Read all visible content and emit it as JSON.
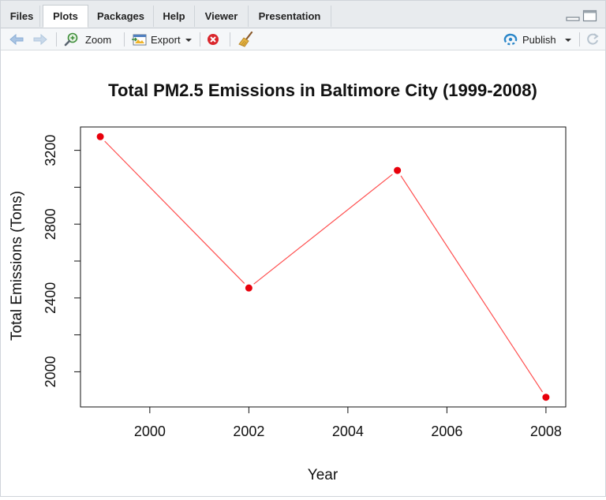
{
  "tabs": [
    {
      "label": "Files",
      "active": false
    },
    {
      "label": "Plots",
      "active": true
    },
    {
      "label": "Packages",
      "active": false
    },
    {
      "label": "Help",
      "active": false
    },
    {
      "label": "Viewer",
      "active": false
    },
    {
      "label": "Presentation",
      "active": false
    }
  ],
  "toolbar": {
    "back_icon": "arrow-left-icon",
    "forward_icon": "arrow-right-icon",
    "zoom_label": "Zoom",
    "export_label": "Export",
    "remove_icon": "remove-plot-icon",
    "clear_icon": "broom-icon",
    "publish_label": "Publish",
    "refresh_icon": "refresh-icon"
  },
  "chart_data": {
    "type": "line",
    "title": "Total PM2.5 Emissions in Baltimore City (1999-2008)",
    "xlabel": "Year",
    "ylabel": "Total Emissions (Tons)",
    "x": [
      1999,
      2002,
      2005,
      2008
    ],
    "series": [
      {
        "values": [
          3274,
          2454,
          3091,
          1862
        ]
      }
    ],
    "xlim": [
      1998.6,
      2008.4
    ],
    "ylim": [
      1809.5,
      3326.5
    ],
    "xticks": [
      2000,
      2002,
      2004,
      2006,
      2008
    ],
    "yticks": [
      2000,
      2400,
      2800,
      3200
    ],
    "minor_yticks": [
      2200,
      2600,
      3000
    ],
    "line_color": "#ff4d4d",
    "point_color": "#e8000b",
    "grid": false,
    "box": true
  }
}
